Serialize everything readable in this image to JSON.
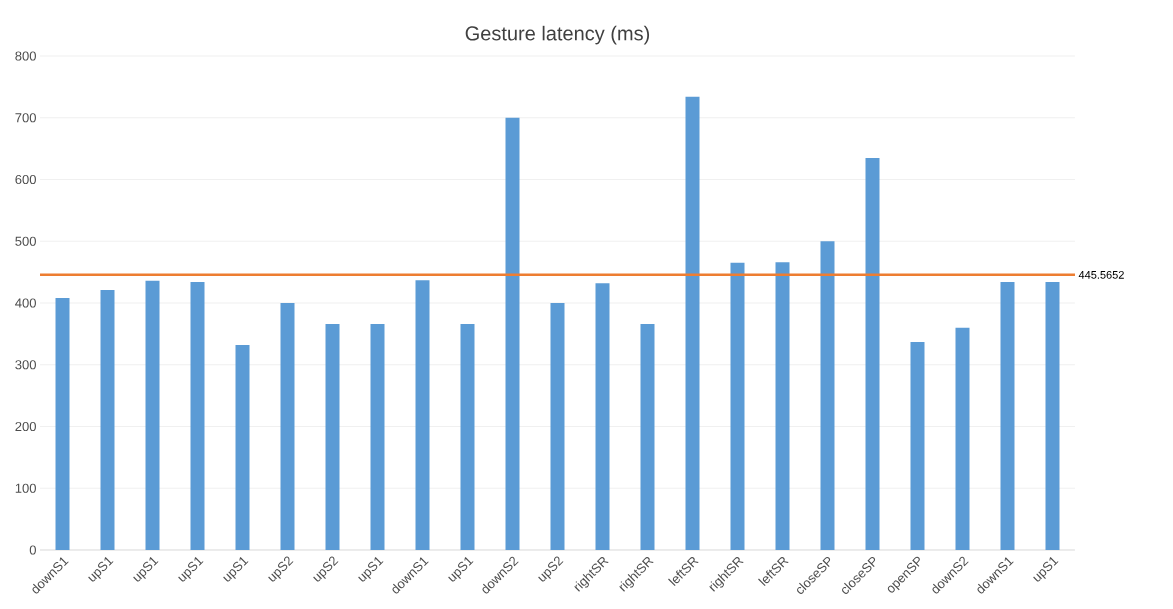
{
  "chart_data": {
    "type": "bar",
    "title": "Gesture latency (ms)",
    "categories": [
      "downS1",
      "upS1",
      "upS1",
      "upS1",
      "upS1",
      "upS2",
      "upS2",
      "upS1",
      "downS1",
      "upS1",
      "downS2",
      "upS2",
      "rightSR",
      "rightSR",
      "leftSR",
      "rightSR",
      "leftSR",
      "closeSP",
      "closeSP",
      "openSP",
      "downS2",
      "downS1",
      "upS1"
    ],
    "values": [
      408,
      421,
      436,
      434,
      332,
      400,
      366,
      366,
      437,
      366,
      700,
      400,
      432,
      366,
      734,
      465,
      466,
      500,
      635,
      337,
      360,
      434,
      434
    ],
    "color": "#5b9bd5",
    "ylim": [
      0,
      800
    ],
    "yticks": [
      0,
      100,
      200,
      300,
      400,
      500,
      600,
      700,
      800
    ],
    "grid": "y",
    "ref_lines": [
      {
        "axis": "y",
        "value": 445.5652,
        "label": "445.5652",
        "color": "#ed7d31"
      }
    ]
  }
}
